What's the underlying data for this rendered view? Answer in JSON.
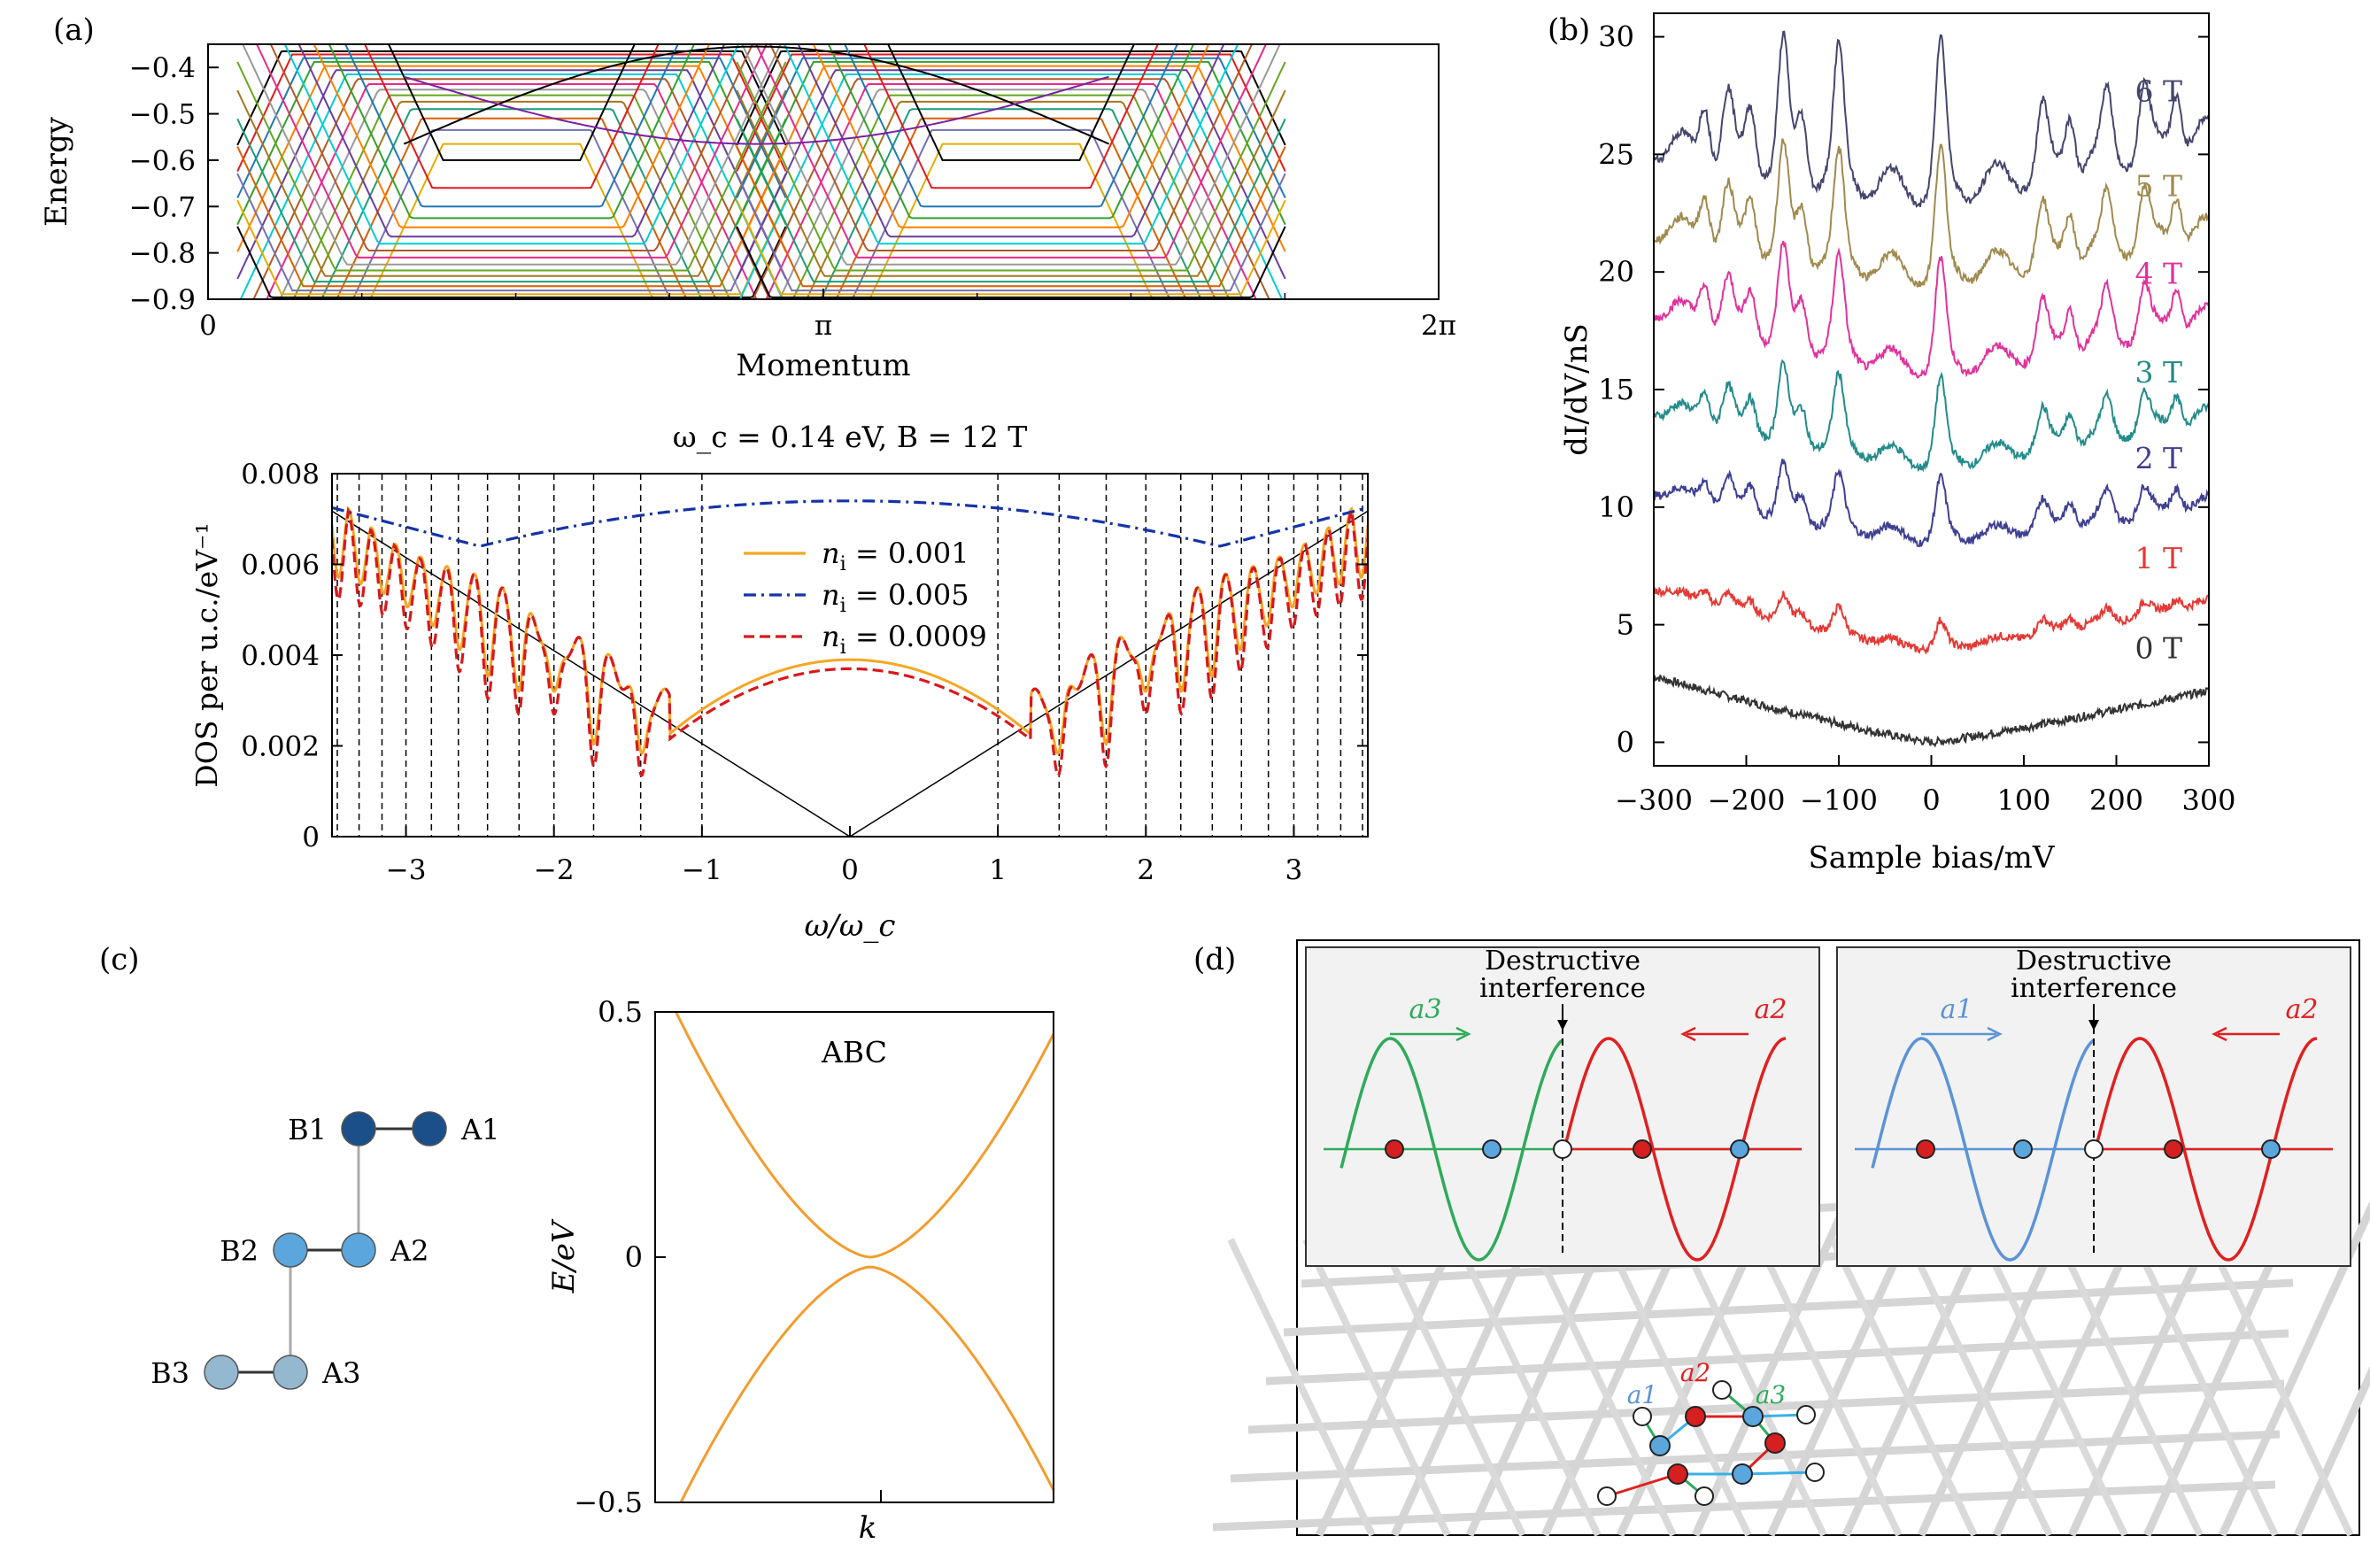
{
  "panel_labels": {
    "a": "(a)",
    "b": "(b)",
    "c": "(c)",
    "d": "(d)"
  },
  "chart_data": [
    {
      "id": "a_top",
      "type": "line",
      "xlabel": "Momentum",
      "ylabel": "Energy",
      "xlim": [
        0,
        6.2832
      ],
      "ylim": [
        -0.9,
        -0.35
      ],
      "x_ticks": [
        {
          "v": 0,
          "label": "0"
        },
        {
          "v": 3.1416,
          "label": "π"
        },
        {
          "v": 6.2832,
          "label": "2π"
        }
      ],
      "y_ticks": [
        {
          "v": -0.4,
          "label": "−0.4"
        },
        {
          "v": -0.5,
          "label": "−0.5"
        },
        {
          "v": -0.6,
          "label": "−0.6"
        },
        {
          "v": -0.7,
          "label": "−0.7"
        },
        {
          "v": -0.8,
          "label": "−0.8"
        },
        {
          "v": -0.9,
          "label": "−0.9"
        }
      ],
      "upper_bands": [
        -0.365,
        -0.372,
        -0.38,
        -0.388,
        -0.397,
        -0.406,
        -0.415,
        -0.425,
        -0.436,
        -0.448,
        -0.46,
        -0.474,
        -0.49,
        -0.51,
        -0.535,
        -0.565
      ],
      "lower_bands": [
        -0.6,
        -0.66,
        -0.7,
        -0.725,
        -0.745,
        -0.765,
        -0.78,
        -0.795,
        -0.81,
        -0.825,
        -0.838,
        -0.85,
        -0.862,
        -0.872,
        -0.881,
        -0.889,
        -0.896
      ],
      "band_colors": [
        "#000000",
        "#e31a1c",
        "#1f78b4",
        "#33a02c",
        "#ff7f00",
        "#6a3d9a",
        "#00ced1",
        "#b15928",
        "#e7298a",
        "#999999",
        "#66a61e",
        "#a6761d",
        "#1b9e77",
        "#d95f02",
        "#7570b3",
        "#e6ab02"
      ],
      "edge_colors": [
        "#000000",
        "#7b1fa2"
      ]
    },
    {
      "id": "a_bottom",
      "type": "line",
      "title": "ω_c = 0.14 eV, B = 12 T",
      "xlabel": "ω/ω_c",
      "ylabel": "DOS per u.c./eV⁻¹",
      "xlim": [
        -3.5,
        3.5
      ],
      "ylim": [
        0,
        0.008
      ],
      "x_ticks": [
        -3,
        -2,
        -1,
        0,
        1,
        2,
        3
      ],
      "y_ticks": [
        {
          "v": 0,
          "label": "0"
        },
        {
          "v": 0.002,
          "label": "0.002"
        },
        {
          "v": 0.004,
          "label": "0.004"
        },
        {
          "v": 0.006,
          "label": "0.006"
        },
        {
          "v": 0.008,
          "label": "0.008"
        }
      ],
      "landau_levels": [
        1.0,
        1.414,
        1.732,
        2.0,
        2.236,
        2.449,
        2.646,
        2.828,
        3.0,
        3.162,
        3.317,
        3.464
      ],
      "linear_slope": 0.00205,
      "series": [
        {
          "name": "n_i = 0.001",
          "color": "#f5a623",
          "style": "solid",
          "gap_peak": 0.0039,
          "depth": 0.0016
        },
        {
          "name": "n_i = 0.005",
          "color": "#1533a8",
          "style": "dashdot",
          "center": 0.0074,
          "min": 0.0064,
          "min_at": 2.5
        },
        {
          "name": "n_i = 0.0009",
          "color": "#d7191c",
          "style": "dashed",
          "gap_peak": 0.0037,
          "depth": 0.0021
        }
      ],
      "legend": [
        {
          "label": "n_i = 0.001",
          "color": "#f5a623",
          "style": "solid"
        },
        {
          "label": "n_i = 0.005",
          "color": "#1533a8",
          "style": "dashdot"
        },
        {
          "label": "n_i = 0.0009",
          "color": "#d7191c",
          "style": "dashed"
        }
      ]
    },
    {
      "id": "b",
      "type": "line",
      "xlabel": "Sample bias/mV",
      "ylabel": "dI/dV/nS",
      "xlim": [
        -300,
        300
      ],
      "ylim": [
        -1,
        31
      ],
      "x_ticks": [
        {
          "v": -300,
          "label": "−300"
        },
        {
          "v": -200,
          "label": "−200"
        },
        {
          "v": -100,
          "label": "−100"
        },
        {
          "v": 0,
          "label": "0"
        },
        {
          "v": 100,
          "label": "100"
        },
        {
          "v": 200,
          "label": "200"
        },
        {
          "v": 300,
          "label": "300"
        }
      ],
      "y_ticks": [
        0,
        5,
        10,
        15,
        20,
        25,
        30
      ],
      "series": [
        {
          "name": "0 T",
          "color": "#333333",
          "offset": 0.0,
          "left": 2.8,
          "right": 2.2,
          "peak_scale": 0.0
        },
        {
          "name": "1 T",
          "color": "#e53935",
          "offset": 4.0,
          "left": 6.6,
          "right": 6.0,
          "peak_scale": 0.25
        },
        {
          "name": "2 T",
          "color": "#3f3f94",
          "offset": 8.7,
          "left": 10.8,
          "right": 10.2,
          "peak_scale": 0.55
        },
        {
          "name": "3 T",
          "color": "#238b8b",
          "offset": 12.0,
          "left": 14.3,
          "right": 13.9,
          "peak_scale": 0.75
        },
        {
          "name": "4 T",
          "color": "#e0329c",
          "offset": 16.0,
          "left": 18.6,
          "right": 18.1,
          "peak_scale": 1.0
        },
        {
          "name": "5 T",
          "color": "#a08a4e",
          "offset": 20.0,
          "left": 22.0,
          "right": 21.8,
          "peak_scale": 1.15
        },
        {
          "name": "6 T",
          "color": "#45456e",
          "offset": 23.5,
          "left": 25.5,
          "right": 25.9,
          "peak_scale": 1.4
        }
      ],
      "peaks_mV": [
        -245,
        -220,
        -195,
        -160,
        -140,
        -100,
        10,
        120,
        150,
        190,
        230,
        265
      ]
    },
    {
      "id": "c_band",
      "type": "line",
      "title": "ABC",
      "xlabel": "k",
      "ylabel": "E/eV",
      "xlim": [
        -1,
        1
      ],
      "ylim": [
        -0.5,
        0.5
      ],
      "y_ticks": [
        {
          "v": 0.5,
          "label": "0.5"
        },
        {
          "v": 0,
          "label": "0"
        },
        {
          "v": -0.5,
          "label": "−0.5"
        }
      ],
      "x_ticks": [
        {
          "v": 0,
          "label": ""
        }
      ],
      "series": [
        {
          "color": "#f39c2e"
        }
      ]
    }
  ],
  "lattice_c": {
    "nodes": [
      {
        "label": "A1",
        "color": "#1a4f8a"
      },
      {
        "label": "B1",
        "color": "#1a4f8a"
      },
      {
        "label": "A2",
        "color": "#5aa6dd"
      },
      {
        "label": "B2",
        "color": "#5aa6dd"
      },
      {
        "label": "A3",
        "color": "#93b8d0"
      },
      {
        "label": "B3",
        "color": "#93b8d0"
      }
    ]
  },
  "panel_d": {
    "left_inset": {
      "label_top": "Destructive",
      "label_bottom": "interference",
      "wave_left": "a3",
      "wave_right": "a2",
      "wave_left_color": "#2eaa5a",
      "wave_right_color": "#e02020"
    },
    "right_inset": {
      "label_top": "Destructive",
      "label_bottom": "interference",
      "wave_left": "a1",
      "wave_right": "a2",
      "wave_left_color": "#5b93d6",
      "wave_right_color": "#e02020"
    },
    "lattice_labels": {
      "a1": "a1",
      "a2": "a2",
      "a3": "a3"
    }
  }
}
